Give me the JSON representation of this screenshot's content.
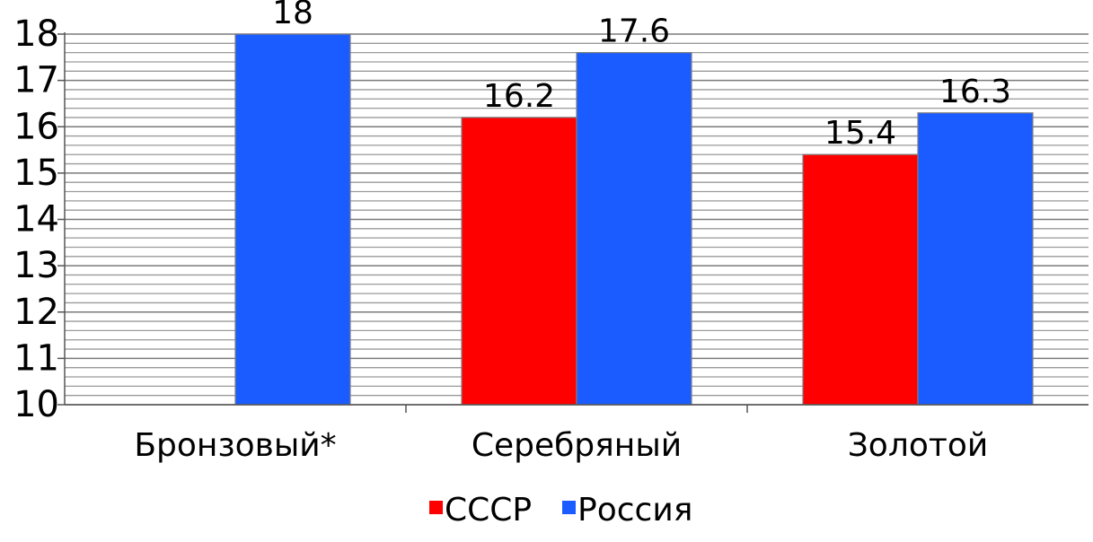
{
  "chart_data": {
    "type": "bar",
    "categories": [
      "Бронзовый*",
      "Серебряный",
      "Золотой"
    ],
    "series": [
      {
        "name": "СССР",
        "color": "#ff0000",
        "values": [
          null,
          16.2,
          15.4
        ],
        "labels": [
          "",
          "16.2",
          "15.4"
        ]
      },
      {
        "name": "Россия",
        "color": "#1a5cff",
        "values": [
          18,
          17.6,
          16.3
        ],
        "labels": [
          "18",
          "17.6",
          "16.3"
        ]
      }
    ],
    "ylim": [
      10,
      18
    ],
    "yticks": [
      "10",
      "11",
      "12",
      "13",
      "14",
      "15",
      "16",
      "17",
      "18"
    ],
    "grid": "horizontal minor lines",
    "legend_position": "bottom"
  }
}
